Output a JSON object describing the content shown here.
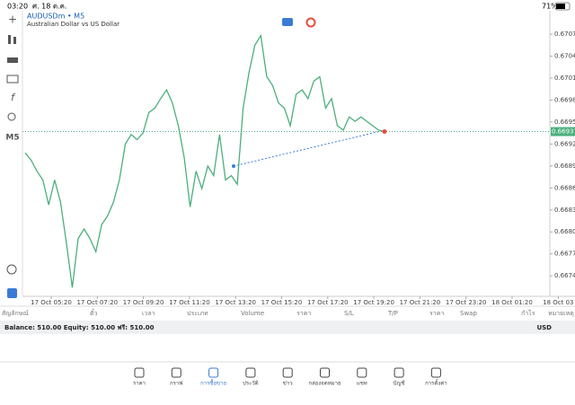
{
  "status_bar": {
    "time": "03:20",
    "date": "ศ. 18 ต.ค.",
    "battery": "71%"
  },
  "left_toolbar": {
    "timeframe": "M5"
  },
  "chart_data": {
    "type": "line",
    "title": "AUDUSDm • M5",
    "subtitle": "Australian Dollar vs US Dollar",
    "xtick_labels": [
      "17 Oct 05:20",
      "17 Oct 07:20",
      "17 Oct 09:20",
      "17 Oct 11:20",
      "17 Oct 13:20",
      "17 Oct 15:20",
      "17 Oct 17:20",
      "17 Oct 19:20",
      "17 Oct 21:20",
      "17 Oct 23:20",
      "18 Oct 01:20",
      "18 Oct 03"
    ],
    "series": [
      {
        "name": "AUDUSDm",
        "color": "#4caf7d",
        "values": [
          0.66908,
          0.66898,
          0.66883,
          0.66871,
          0.66837,
          0.66871,
          0.66841,
          0.66785,
          0.66724,
          0.66791,
          0.66804,
          0.66791,
          0.66773,
          0.6681,
          0.66822,
          0.66841,
          0.66871,
          0.6692,
          0.66933,
          0.66926,
          0.66935,
          0.66963,
          0.66969,
          0.66982,
          0.66994,
          0.66976,
          0.66945,
          0.66902,
          0.66834,
          0.66883,
          0.66859,
          0.6689,
          0.66877,
          0.66933,
          0.66871,
          0.66877,
          0.66865,
          0.66969,
          0.67018,
          0.67055,
          0.67068,
          0.67012,
          0.67,
          0.66976,
          0.66969,
          0.66945,
          0.66988,
          0.66994,
          0.66982,
          0.67006,
          0.67012,
          0.66969,
          0.66982,
          0.66945,
          0.66939,
          0.66957,
          0.66951,
          0.66957,
          0.66951,
          0.66945,
          0.66939,
          0.66937
        ]
      }
    ],
    "ylim": [
      0.66712,
      0.67102
    ],
    "yticks": [
      {
        "value": 0.6707,
        "label": "0.67070"
      },
      {
        "value": 0.6704,
        "label": "0.67040"
      },
      {
        "value": 0.6701,
        "label": "0.67010"
      },
      {
        "value": 0.6698,
        "label": "0.66980"
      },
      {
        "value": 0.6695,
        "label": "0.66950"
      },
      {
        "value": 0.6692,
        "label": "0.66920"
      },
      {
        "value": 0.6689,
        "label": "0.66890"
      },
      {
        "value": 0.6686,
        "label": "0.66860"
      },
      {
        "value": 0.6683,
        "label": "0.66830"
      },
      {
        "value": 0.668,
        "label": "0.66800"
      },
      {
        "value": 0.6677,
        "label": "0.66770"
      },
      {
        "value": 0.6674,
        "label": "0.66740"
      }
    ],
    "last_price": 0.66937
  },
  "table": {
    "headers": [
      "สัญลักษณ์",
      "ตั๋ว",
      "เวลา",
      "ประเภท",
      "Volume",
      "ราคา",
      "S/L",
      "T/P",
      "ราคา",
      "Swap",
      "กำไร",
      "หมายเหตุ"
    ]
  },
  "balance_bar": {
    "text": "Balance: 510.00 Equity: 510.00 ฟรี: 510.00",
    "currency": "USD"
  },
  "tab_bar": [
    "ราคา",
    "กราฟ",
    "การซื้อขาย",
    "ประวัติ",
    "ข่าว",
    "กล่องจดหมาย",
    "แชท",
    "บัญชี",
    "การตั้งค่า"
  ]
}
